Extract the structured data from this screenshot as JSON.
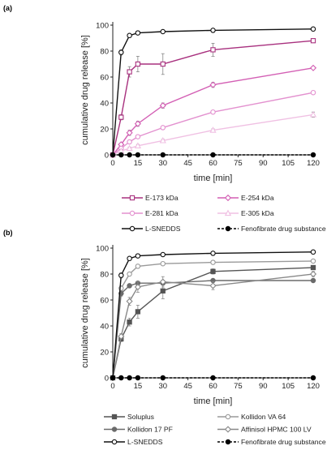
{
  "chart_data": [
    {
      "type": "line",
      "panel": "(a)",
      "xlabel": "time [min]",
      "ylabel": "cumulative drug release [%]",
      "xlim": [
        0,
        120
      ],
      "ylim": [
        0,
        100
      ],
      "xticks": [
        0,
        15,
        30,
        45,
        60,
        75,
        90,
        105,
        120
      ],
      "yticks": [
        0,
        20,
        40,
        60,
        80,
        100
      ],
      "x": [
        0,
        5,
        10,
        15,
        30,
        60,
        120
      ],
      "grid": false,
      "legend_position": "bottom",
      "series": [
        {
          "name": "E-173 kDa",
          "color": "#a8307e",
          "marker": "open-square",
          "dash": "none",
          "values": [
            0,
            29,
            64,
            70,
            70,
            81,
            88
          ],
          "errors": [
            0,
            2,
            4,
            6,
            8,
            5,
            1
          ]
        },
        {
          "name": "E-254 kDa",
          "color": "#d35fb4",
          "marker": "open-diamond",
          "dash": "none",
          "values": [
            0,
            8,
            17,
            24,
            38,
            54,
            67
          ],
          "errors": [
            0,
            1,
            2,
            2,
            2,
            2,
            1
          ]
        },
        {
          "name": "E-281 kDa",
          "color": "#e391cf",
          "marker": "open-circle",
          "dash": "none",
          "values": [
            0,
            5,
            10,
            14,
            21,
            33,
            48
          ],
          "errors": [
            0,
            1,
            1,
            1,
            1,
            1,
            1
          ]
        },
        {
          "name": "E-305 kDa",
          "color": "#f0c0e3",
          "marker": "open-triangle",
          "dash": "none",
          "values": [
            0,
            3,
            5,
            7,
            11,
            19,
            31
          ],
          "errors": [
            0,
            1,
            1,
            1,
            1,
            1,
            2
          ]
        },
        {
          "name": "L-SNEDDS",
          "color": "#111111",
          "marker": "open-circle",
          "dash": "none",
          "values": [
            0,
            79,
            92,
            94,
            95,
            96,
            97
          ],
          "errors": [
            0,
            2,
            1,
            1,
            1,
            0,
            0
          ]
        },
        {
          "name": "Fenofibrate drug substance",
          "color": "#000000",
          "marker": "filled-circle",
          "dash": "dashed",
          "values": [
            0,
            0,
            0,
            0,
            0,
            0,
            0
          ],
          "errors": [
            0,
            0,
            0,
            0,
            0,
            0,
            0
          ]
        }
      ]
    },
    {
      "type": "line",
      "panel": "(b)",
      "xlabel": "time [min]",
      "ylabel": "cumulative drug release [%]",
      "xlim": [
        0,
        120
      ],
      "ylim": [
        0,
        100
      ],
      "xticks": [
        0,
        15,
        30,
        45,
        60,
        75,
        90,
        105,
        120
      ],
      "yticks": [
        0,
        20,
        40,
        60,
        80,
        100
      ],
      "x": [
        0,
        5,
        10,
        15,
        30,
        60,
        120
      ],
      "grid": false,
      "legend_position": "bottom",
      "series": [
        {
          "name": "Soluplus",
          "color": "#555555",
          "marker": "filled-square",
          "dash": "none",
          "values": [
            0,
            30,
            43,
            51,
            67,
            82,
            85
          ],
          "errors": [
            0,
            2,
            3,
            5,
            6,
            2,
            1
          ]
        },
        {
          "name": "Kollidon VA 64",
          "color": "#9a9a9a",
          "marker": "open-circle",
          "dash": "none",
          "values": [
            0,
            69,
            80,
            86,
            88,
            89,
            90
          ],
          "errors": [
            0,
            2,
            1,
            1,
            1,
            1,
            1
          ]
        },
        {
          "name": "Kollidon 17 PF",
          "color": "#6b6b6b",
          "marker": "filled-circle",
          "dash": "none",
          "values": [
            0,
            65,
            71,
            73,
            73,
            75,
            75
          ],
          "errors": [
            0,
            2,
            1,
            1,
            1,
            1,
            1
          ]
        },
        {
          "name": "Affinisol HPMC 100 LV",
          "color": "#888888",
          "marker": "open-diamond",
          "dash": "none",
          "values": [
            0,
            32,
            59,
            70,
            74,
            71,
            80
          ],
          "errors": [
            0,
            2,
            3,
            4,
            4,
            3,
            2
          ]
        },
        {
          "name": "L-SNEDDS",
          "color": "#111111",
          "marker": "open-circle",
          "dash": "none",
          "values": [
            0,
            79,
            92,
            94,
            95,
            96,
            97
          ],
          "errors": [
            0,
            2,
            1,
            1,
            1,
            0,
            0
          ]
        },
        {
          "name": "Fenofibrate drug substance",
          "color": "#000000",
          "marker": "filled-circle",
          "dash": "dashed",
          "values": [
            0,
            0,
            0,
            0,
            0,
            0,
            0
          ],
          "errors": [
            0,
            0,
            0,
            0,
            0,
            0,
            0
          ]
        }
      ]
    }
  ]
}
